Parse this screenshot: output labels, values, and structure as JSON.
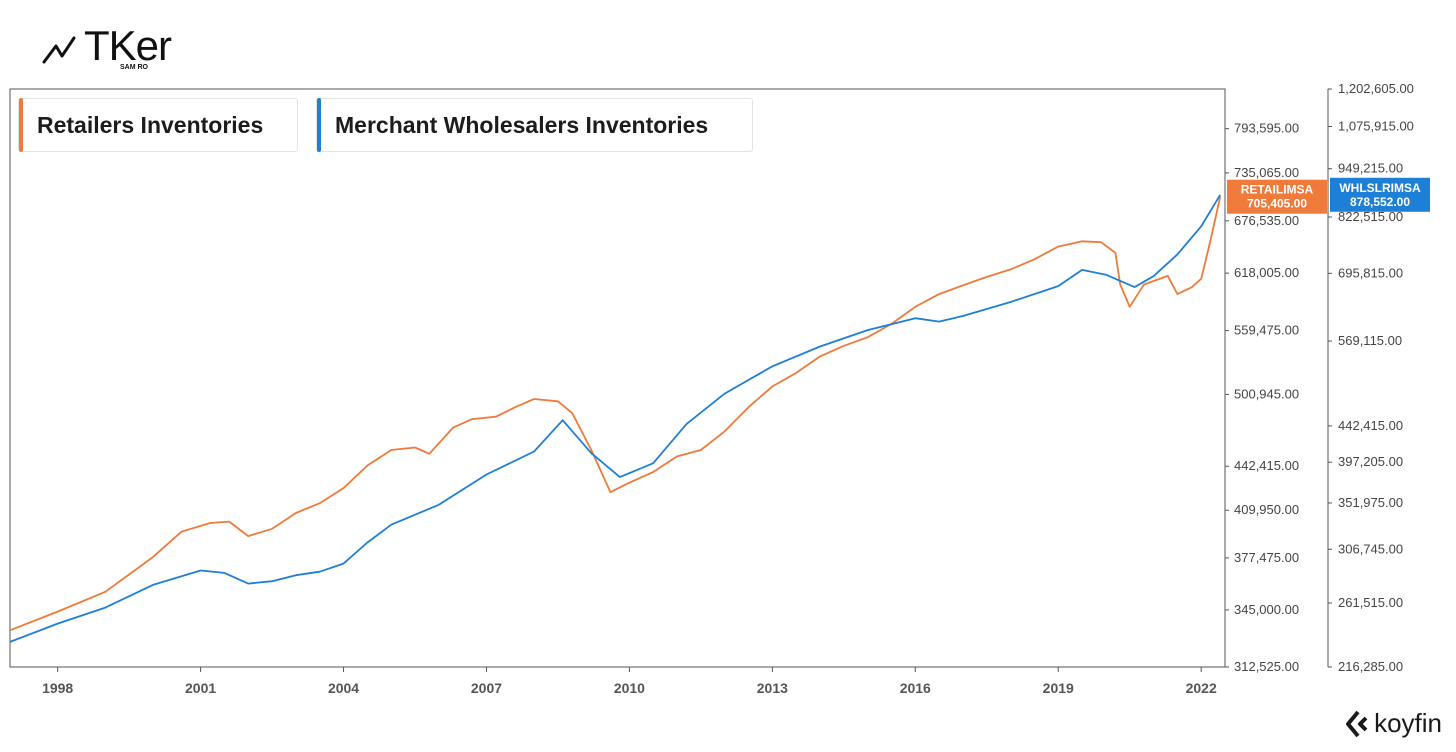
{
  "brand": {
    "name": "TKer",
    "byline": "SAM RO"
  },
  "footer_brand": "koyfin",
  "chart_data": {
    "type": "line",
    "x_ticks": [
      "1998",
      "2001",
      "2004",
      "2007",
      "2010",
      "2013",
      "2016",
      "2019",
      "2022"
    ],
    "xlim": [
      1997,
      2022.5
    ],
    "axes": {
      "left": {
        "ylim": [
          312525,
          850000
        ],
        "scale": "log",
        "ticks": [
          "312,525.00",
          "345,000.00",
          "377,475.00",
          "409,950.00",
          "442,415.00",
          "500,945.00",
          "559,475.00",
          "618,005.00",
          "676,535.00",
          "735,065.00",
          "793,595.00"
        ]
      },
      "right": {
        "ylim": [
          216285,
          1202605
        ],
        "scale": "log",
        "ticks": [
          "216,285.00",
          "261,515.00",
          "306,745.00",
          "351,975.00",
          "397,205.00",
          "442,415.00",
          "569,115.00",
          "695,815.00",
          "822,515.00",
          "949,215.00",
          "1,075,915.00",
          "1,202,605.00"
        ]
      }
    },
    "series": [
      {
        "name": "Retailers Inventories",
        "ticker": "RETAILIMSA",
        "last_value": "705,405.00",
        "axis": "left",
        "color": "#f07a3a",
        "points": [
          [
            1997.0,
            333000
          ],
          [
            1998.0,
            344000
          ],
          [
            1999.0,
            356000
          ],
          [
            2000.0,
            378000
          ],
          [
            2000.6,
            395000
          ],
          [
            2001.2,
            401000
          ],
          [
            2001.6,
            402000
          ],
          [
            2002.0,
            392000
          ],
          [
            2002.5,
            397000
          ],
          [
            2003.0,
            408000
          ],
          [
            2003.5,
            415000
          ],
          [
            2004.0,
            426000
          ],
          [
            2004.5,
            443000
          ],
          [
            2005.0,
            455000
          ],
          [
            2005.5,
            457000
          ],
          [
            2005.8,
            452000
          ],
          [
            2006.3,
            473000
          ],
          [
            2006.7,
            480000
          ],
          [
            2007.2,
            482000
          ],
          [
            2007.6,
            490000
          ],
          [
            2008.0,
            497000
          ],
          [
            2008.5,
            495000
          ],
          [
            2008.8,
            485000
          ],
          [
            2009.2,
            455000
          ],
          [
            2009.6,
            423000
          ],
          [
            2010.0,
            430000
          ],
          [
            2010.5,
            438000
          ],
          [
            2011.0,
            450000
          ],
          [
            2011.5,
            455000
          ],
          [
            2012.0,
            470000
          ],
          [
            2012.5,
            490000
          ],
          [
            2013.0,
            508000
          ],
          [
            2013.5,
            520000
          ],
          [
            2014.0,
            535000
          ],
          [
            2014.5,
            545000
          ],
          [
            2015.0,
            553000
          ],
          [
            2015.5,
            566000
          ],
          [
            2016.0,
            583000
          ],
          [
            2016.5,
            596000
          ],
          [
            2017.0,
            605000
          ],
          [
            2017.5,
            614000
          ],
          [
            2018.0,
            622000
          ],
          [
            2018.5,
            633000
          ],
          [
            2019.0,
            647000
          ],
          [
            2019.5,
            653000
          ],
          [
            2019.9,
            652000
          ],
          [
            2020.2,
            640000
          ],
          [
            2020.3,
            606000
          ],
          [
            2020.5,
            583000
          ],
          [
            2020.8,
            606000
          ],
          [
            2021.3,
            615000
          ],
          [
            2021.5,
            596000
          ],
          [
            2021.8,
            603000
          ],
          [
            2022.0,
            612000
          ],
          [
            2022.2,
            655000
          ],
          [
            2022.4,
            705405
          ]
        ]
      },
      {
        "name": "Merchant Wholesalers Inventories",
        "ticker": "WHLSLRIMSA",
        "last_value": "878,552.00",
        "axis": "right",
        "color": "#1e7fd6",
        "points": [
          [
            1997.0,
            233000
          ],
          [
            1998.0,
            246000
          ],
          [
            1999.0,
            258000
          ],
          [
            2000.0,
            276000
          ],
          [
            2001.0,
            288000
          ],
          [
            2001.5,
            286000
          ],
          [
            2002.0,
            277000
          ],
          [
            2002.5,
            279000
          ],
          [
            2003.0,
            284000
          ],
          [
            2003.5,
            287000
          ],
          [
            2004.0,
            294000
          ],
          [
            2004.5,
            313000
          ],
          [
            2005.0,
            330000
          ],
          [
            2006.0,
            350000
          ],
          [
            2007.0,
            383000
          ],
          [
            2008.0,
            410000
          ],
          [
            2008.6,
            450000
          ],
          [
            2009.2,
            408000
          ],
          [
            2009.8,
            380000
          ],
          [
            2010.5,
            396000
          ],
          [
            2011.2,
            445000
          ],
          [
            2012.0,
            487000
          ],
          [
            2013.0,
            528000
          ],
          [
            2014.0,
            560000
          ],
          [
            2015.0,
            588000
          ],
          [
            2016.0,
            609000
          ],
          [
            2016.5,
            603000
          ],
          [
            2017.0,
            613000
          ],
          [
            2018.0,
            639000
          ],
          [
            2019.0,
            670000
          ],
          [
            2019.5,
            703000
          ],
          [
            2020.0,
            693000
          ],
          [
            2020.6,
            668000
          ],
          [
            2021.0,
            690000
          ],
          [
            2021.5,
            736000
          ],
          [
            2022.0,
            800000
          ],
          [
            2022.4,
            878552
          ]
        ]
      }
    ]
  }
}
